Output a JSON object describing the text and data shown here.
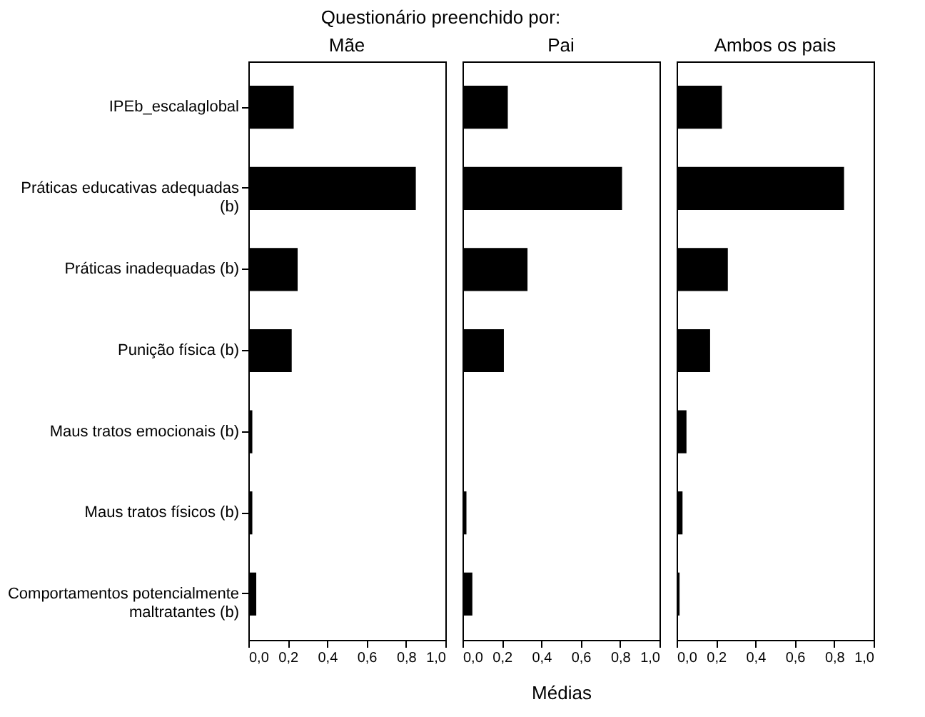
{
  "chart_data": [
    {
      "type": "bar",
      "orientation": "horizontal",
      "title": "Mãe",
      "annotations": [
        "Questionário preenchido por:"
      ],
      "categories": [
        "IPEb_escalaglobal",
        "Práticas educativas adequadas (b)",
        "Práticas inadequadas (b)",
        "Punição física (b)",
        "Maus tratos emocionais (b)",
        "Maus tratos físicos (b)",
        "Comportamentos potencialmente maltratantes (b)"
      ],
      "values": [
        0.23,
        0.85,
        0.25,
        0.22,
        0.02,
        0.02,
        0.04
      ],
      "color": "#000000",
      "xlim": [
        0,
        1
      ],
      "xticks": [
        {
          "value": 0,
          "label": "0,0"
        },
        {
          "value": 0.2,
          "label": "0,2"
        },
        {
          "value": 0.4,
          "label": "0,4"
        },
        {
          "value": 0.6,
          "label": "0,6"
        },
        {
          "value": 0.8,
          "label": "0,8"
        },
        {
          "value": 1,
          "label": "1,0"
        }
      ],
      "grid": false
    },
    {
      "type": "bar",
      "orientation": "horizontal",
      "title": "Pai",
      "xlabel": "Médias",
      "tick_labels": "x",
      "categories": [
        null,
        null,
        null,
        null,
        null,
        null,
        null
      ],
      "values": [
        0.23,
        0.81,
        0.33,
        0.21,
        0.005,
        0.02,
        0.05
      ],
      "color": "#000000",
      "xlim": [
        0,
        1
      ],
      "xticks": [
        {
          "value": 0,
          "label": "0,0"
        },
        {
          "value": 0.2,
          "label": "0,2"
        },
        {
          "value": 0.4,
          "label": "0,4"
        },
        {
          "value": 0.6,
          "label": "0,6"
        },
        {
          "value": 0.8,
          "label": "0,8"
        },
        {
          "value": 1,
          "label": "1,0"
        }
      ],
      "grid": false
    },
    {
      "type": "bar",
      "orientation": "horizontal",
      "title": "Ambos os pais",
      "tick_labels": "x",
      "categories": [
        null,
        null,
        null,
        null,
        null,
        null,
        null
      ],
      "values": [
        0.23,
        0.85,
        0.26,
        0.17,
        0.05,
        0.03,
        0.015
      ],
      "color": "#000000",
      "xlim": [
        0,
        1
      ],
      "xticks": [
        {
          "value": 0,
          "label": "0,0"
        },
        {
          "value": 0.2,
          "label": "0,2"
        },
        {
          "value": 0.4,
          "label": "0,4"
        },
        {
          "value": 0.6,
          "label": "0,6"
        },
        {
          "value": 0.8,
          "label": "0,8"
        },
        {
          "value": 1,
          "label": "1,0"
        }
      ],
      "grid": false
    }
  ]
}
